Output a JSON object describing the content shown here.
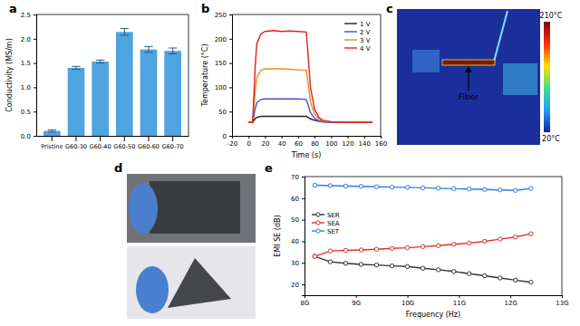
{
  "panel_labels": [
    "a",
    "b",
    "c",
    "d",
    "e"
  ],
  "thermal_image": {
    "colorbar_max": "210°C",
    "colorbar_min": "20°C",
    "annotation": "Fiber"
  },
  "chart_data": [
    {
      "type": "bar",
      "ylabel": "Conductivity (MS/m)",
      "categories": [
        "Pristine",
        "G60-30",
        "G60-40",
        "G60-50",
        "G60-60",
        "G60-70"
      ],
      "values": [
        0.1,
        1.4,
        1.53,
        2.14,
        1.78,
        1.75
      ],
      "errors": [
        0.02,
        0.03,
        0.03,
        0.07,
        0.06,
        0.06
      ],
      "color": "#4ea3e0",
      "ylim": [
        0,
        2.5
      ],
      "yticks": [
        {
          "value": 0,
          "label": "0.0"
        },
        {
          "value": 0.5,
          "label": "0.5"
        },
        {
          "value": 1,
          "label": "1.0"
        },
        {
          "value": 1.5,
          "label": "1.5"
        },
        {
          "value": 2,
          "label": "2.0"
        },
        {
          "value": 2.5,
          "label": "2.5"
        }
      ],
      "grid": false
    },
    {
      "type": "line",
      "xlabel": "Time (s)",
      "ylabel": "Temperature (°C)",
      "x": [
        0,
        5,
        8,
        10,
        15,
        20,
        30,
        40,
        50,
        60,
        70,
        72,
        75,
        80,
        85,
        90,
        100,
        120,
        150
      ],
      "series": [
        {
          "name": "1 V",
          "color": "#222222",
          "values": [
            28,
            28,
            35,
            38,
            40,
            40,
            40,
            40,
            40,
            40,
            40,
            38,
            35,
            32,
            30,
            29,
            28,
            28,
            28
          ]
        },
        {
          "name": "2 V",
          "color": "#3b4fd8",
          "values": [
            28,
            28,
            55,
            68,
            75,
            76,
            76,
            76,
            76,
            76,
            75,
            65,
            48,
            36,
            31,
            29,
            28,
            28,
            28
          ]
        },
        {
          "name": "3 V",
          "color": "#f08a1c",
          "values": [
            28,
            28,
            90,
            120,
            135,
            138,
            138,
            138,
            137,
            136,
            135,
            110,
            70,
            45,
            35,
            30,
            29,
            28,
            28
          ]
        },
        {
          "name": "4 V",
          "color": "#e02020",
          "values": [
            28,
            28,
            140,
            190,
            210,
            215,
            217,
            215,
            216,
            215,
            214,
            170,
            100,
            55,
            38,
            32,
            29,
            28,
            28
          ]
        }
      ],
      "xlim": [
        -20,
        160
      ],
      "xticks": [
        -20,
        0,
        20,
        40,
        60,
        80,
        100,
        120,
        140,
        160
      ],
      "ylim": [
        0,
        250
      ],
      "yticks": [
        0,
        50,
        100,
        150,
        200,
        250
      ],
      "legend": "upper right",
      "grid": false
    },
    {
      "type": "line",
      "xlabel": "Frequency (Hz)",
      "ylabel": "EMI SE (dB)",
      "x": [
        8.2,
        8.5,
        8.8,
        9.1,
        9.4,
        9.7,
        10.0,
        10.3,
        10.6,
        10.9,
        11.2,
        11.5,
        11.8,
        12.1,
        12.4
      ],
      "series": [
        {
          "name": "SER",
          "color": "#333333",
          "marker": "circle",
          "values": [
            33,
            30.5,
            29.8,
            29.3,
            29,
            28.6,
            28.3,
            27.5,
            26.8,
            26,
            25,
            24,
            23,
            22,
            21
          ]
        },
        {
          "name": "SEA",
          "color": "#e0302a",
          "marker": "circle",
          "values": [
            33,
            35.5,
            35.8,
            36,
            36.3,
            36.7,
            37,
            37.5,
            38,
            38.6,
            39.2,
            40,
            41,
            42,
            43.5
          ]
        },
        {
          "name": "SET",
          "color": "#2a7de0",
          "marker": "circle",
          "values": [
            66,
            65.8,
            65.6,
            65.5,
            65.3,
            65.1,
            65,
            64.8,
            64.6,
            64.4,
            64.2,
            64,
            63.8,
            63.6,
            64.5
          ]
        }
      ],
      "xlim": [
        8,
        13
      ],
      "xticks": [
        {
          "value": 8,
          "label": "8G"
        },
        {
          "value": 9,
          "label": "9G"
        },
        {
          "value": 10,
          "label": "10G"
        },
        {
          "value": 11,
          "label": "11G"
        },
        {
          "value": 12,
          "label": "12G"
        },
        {
          "value": 13,
          "label": "13G"
        }
      ],
      "ylim": [
        15,
        70
      ],
      "yticks": [
        20,
        30,
        40,
        50,
        60,
        70
      ],
      "legend": "center left",
      "grid": false
    }
  ]
}
